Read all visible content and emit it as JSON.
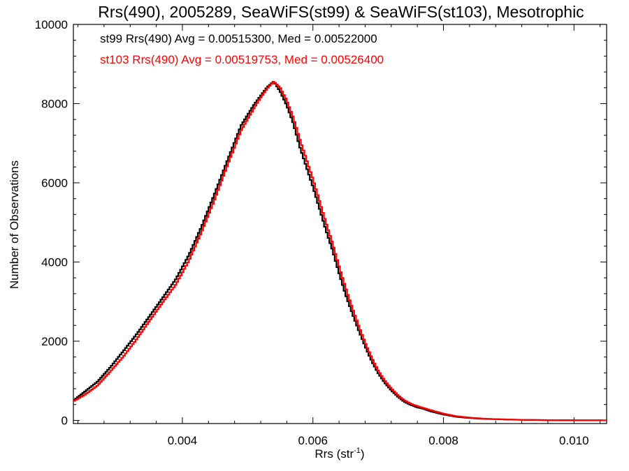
{
  "chart_data": {
    "type": "line",
    "title": "Rrs(490), 2005289, SeaWiFS(st99) & SeaWiFS(st103), Mesotrophic",
    "xlabel": "Rrs (str",
    "xlabel_sup": "-1",
    "xlabel_close": ")",
    "ylabel": "Number of Observations",
    "xlim": [
      0.00233,
      0.0105
    ],
    "ylim": [
      -80,
      10000
    ],
    "x_ticks": [
      0.004,
      0.006,
      0.008,
      0.01
    ],
    "x_tick_labels": [
      "0.004",
      "0.006",
      "0.008",
      "0.010"
    ],
    "y_ticks": [
      0,
      2000,
      4000,
      6000,
      8000,
      10000
    ],
    "y_tick_labels": [
      "0",
      "2000",
      "4000",
      "6000",
      "8000",
      "10000"
    ],
    "grid": false,
    "step": true,
    "series": [
      {
        "name": "st99 Rrs(490) Avg = 0.00515300, Med = 0.00522000",
        "color": "#000000",
        "x": [
          0.00233,
          0.0025,
          0.0027,
          0.0029,
          0.0031,
          0.0033,
          0.0035,
          0.0037,
          0.0039,
          0.0041,
          0.0043,
          0.0045,
          0.0047,
          0.0049,
          0.0051,
          0.0052,
          0.0053,
          0.0054,
          0.0055,
          0.0056,
          0.0057,
          0.0058,
          0.0059,
          0.006,
          0.0061,
          0.0062,
          0.0063,
          0.0064,
          0.0065,
          0.0066,
          0.0067,
          0.0068,
          0.0069,
          0.007,
          0.0071,
          0.0072,
          0.0073,
          0.0074,
          0.0075,
          0.0076,
          0.0077,
          0.0078,
          0.008,
          0.0082,
          0.0084,
          0.0086,
          0.0088,
          0.009,
          0.0092,
          0.0094,
          0.0096,
          0.0098,
          0.01,
          0.0102,
          0.0104,
          0.0105
        ],
        "y": [
          500,
          720,
          980,
          1350,
          1760,
          2180,
          2640,
          3100,
          3570,
          4180,
          4920,
          5750,
          6610,
          7450,
          7980,
          8200,
          8420,
          8560,
          8300,
          7950,
          7500,
          6900,
          6400,
          5900,
          5350,
          4800,
          4300,
          3720,
          3180,
          2720,
          2280,
          1870,
          1500,
          1190,
          950,
          760,
          600,
          470,
          390,
          330,
          290,
          230,
          150,
          90,
          60,
          40,
          30,
          20,
          14,
          10,
          6,
          4,
          3,
          2,
          1,
          0
        ]
      },
      {
        "name": "st103 Rrs(490) Avg = 0.00519753, Med = 0.00526400",
        "color": "#ff0000",
        "x": [
          0.00233,
          0.0025,
          0.0027,
          0.0029,
          0.0031,
          0.0033,
          0.0035,
          0.0037,
          0.0039,
          0.0041,
          0.0043,
          0.0045,
          0.0047,
          0.0049,
          0.0051,
          0.0052,
          0.0053,
          0.0054,
          0.0055,
          0.0056,
          0.0057,
          0.0058,
          0.0059,
          0.006,
          0.0061,
          0.0062,
          0.0063,
          0.0064,
          0.0065,
          0.0066,
          0.0067,
          0.0068,
          0.0069,
          0.007,
          0.0071,
          0.0072,
          0.0073,
          0.0074,
          0.0075,
          0.0076,
          0.0077,
          0.0078,
          0.008,
          0.0082,
          0.0084,
          0.0086,
          0.0088,
          0.009,
          0.0092,
          0.0094,
          0.0096,
          0.0098,
          0.01,
          0.0102,
          0.0104,
          0.0105
        ],
        "y": [
          480,
          640,
          880,
          1240,
          1620,
          2050,
          2520,
          2980,
          3430,
          4030,
          4780,
          5600,
          6480,
          7320,
          7890,
          8150,
          8380,
          8560,
          8400,
          8080,
          7650,
          7100,
          6600,
          6100,
          5550,
          5000,
          4480,
          3900,
          3360,
          2860,
          2400,
          1970,
          1590,
          1260,
          1010,
          810,
          640,
          510,
          420,
          360,
          310,
          260,
          170,
          105,
          70,
          45,
          32,
          22,
          15,
          11,
          7,
          5,
          3,
          2,
          1,
          0
        ]
      }
    ]
  }
}
